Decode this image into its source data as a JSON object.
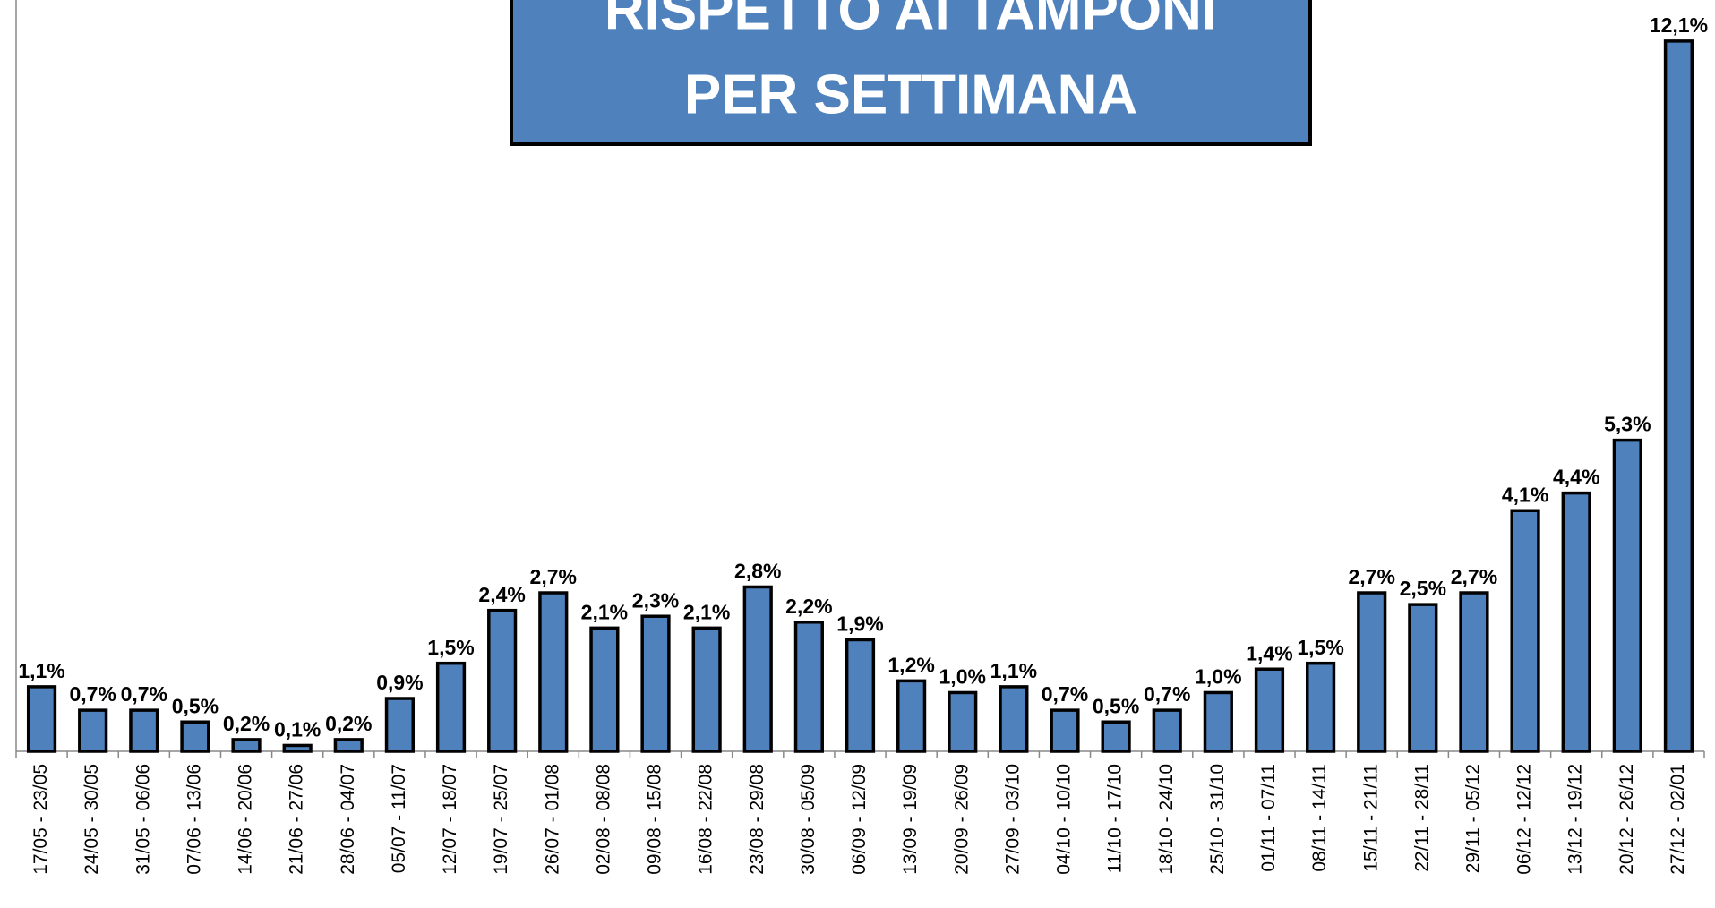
{
  "chart_data": {
    "type": "bar",
    "title": [
      "RISPETTO AI TAMPONI",
      "PER SETTIMANA"
    ],
    "categories": [
      "17/05 - 23/05",
      "24/05 - 30/05",
      "31/05 - 06/06",
      "07/06 - 13/06",
      "14/06 - 20/06",
      "21/06 - 27/06",
      "28/06 - 04/07",
      "05/07 - 11/07",
      "12/07 - 18/07",
      "19/07 - 25/07",
      "26/07 - 01/08",
      "02/08 - 08/08",
      "09/08 - 15/08",
      "16/08 - 22/08",
      "23/08 - 29/08",
      "30/08 - 05/09",
      "06/09 - 12/09",
      "13/09 - 19/09",
      "20/09 - 26/09",
      "27/09 - 03/10",
      "04/10 - 10/10",
      "11/10 - 17/10",
      "18/10 - 24/10",
      "25/10 - 31/10",
      "01/11 - 07/11",
      "08/11 - 14/11",
      "15/11 - 21/11",
      "22/11 - 28/11",
      "29/11 - 05/12",
      "06/12 - 12/12",
      "13/12 - 19/12",
      "20/12 - 26/12",
      "27/12 - 02/01"
    ],
    "values": [
      1.1,
      0.7,
      0.7,
      0.5,
      0.2,
      0.1,
      0.2,
      0.9,
      1.5,
      2.4,
      2.7,
      2.1,
      2.3,
      2.1,
      2.8,
      2.2,
      1.9,
      1.2,
      1.0,
      1.1,
      0.7,
      0.5,
      0.7,
      1.0,
      1.4,
      1.5,
      2.7,
      2.5,
      2.7,
      4.1,
      4.4,
      5.3,
      12.1
    ],
    "value_labels": [
      "1,1%",
      "0,7%",
      "0,7%",
      "0,5%",
      "0,2%",
      "0,1%",
      "0,2%",
      "0,9%",
      "1,5%",
      "2,4%",
      "2,7%",
      "2,1%",
      "2,3%",
      "2,1%",
      "2,8%",
      "2,2%",
      "1,9%",
      "1,2%",
      "1,0%",
      "1,1%",
      "0,7%",
      "0,5%",
      "0,7%",
      "1,0%",
      "1,4%",
      "1,5%",
      "2,7%",
      "2,5%",
      "2,7%",
      "4,1%",
      "4,4%",
      "5,3%",
      "12,1%"
    ],
    "color": "#4f81bd",
    "ylim": [
      0,
      12.8
    ]
  }
}
